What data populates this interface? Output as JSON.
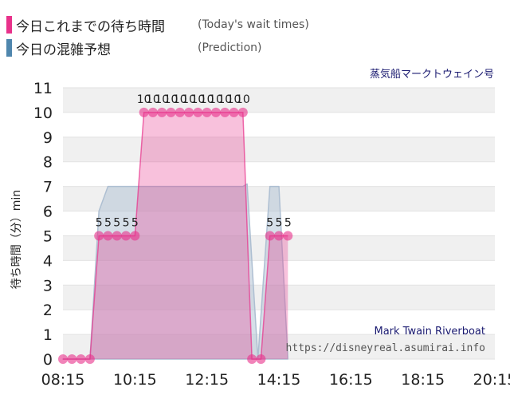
{
  "legend": {
    "today_label": "今日これまでの待ち時間",
    "today_sub": "(Today's wait times)",
    "today_color": "#e8318a",
    "prediction_label": "今日の混雑予想",
    "prediction_sub": "(Prediction)",
    "prediction_color": "#4f86ad"
  },
  "attraction_name": "蒸気船マークトウェイン号",
  "watermark": {
    "line1": "Mark Twain Riverboat",
    "line2": "https://disneyreal.asumirai.info"
  },
  "chart_data": {
    "type": "area",
    "ylabel": "待ち時間（分）min",
    "xlabel": "",
    "ylim": [
      0,
      11
    ],
    "yticks": [
      0,
      1,
      2,
      3,
      4,
      5,
      6,
      7,
      8,
      9,
      10,
      11
    ],
    "xticks": [
      "08:15",
      "10:15",
      "12:15",
      "14:15",
      "16:15",
      "18:15",
      "20:15"
    ],
    "grid": true,
    "series": [
      {
        "kind": "actual",
        "color": "#e8318a",
        "points": [
          [
            "08:15",
            0
          ],
          [
            "08:30",
            0
          ],
          [
            "08:45",
            0
          ],
          [
            "09:00",
            0
          ],
          [
            "09:15",
            5
          ],
          [
            "09:30",
            5
          ],
          [
            "09:45",
            5
          ],
          [
            "10:00",
            5
          ],
          [
            "10:15",
            5
          ],
          [
            "10:30",
            10
          ],
          [
            "10:45",
            10
          ],
          [
            "11:00",
            10
          ],
          [
            "11:15",
            10
          ],
          [
            "11:30",
            10
          ],
          [
            "11:45",
            10
          ],
          [
            "12:00",
            10
          ],
          [
            "12:15",
            10
          ],
          [
            "12:30",
            10
          ],
          [
            "12:45",
            10
          ],
          [
            "13:00",
            10
          ],
          [
            "13:15",
            10
          ],
          [
            "13:30",
            0
          ],
          [
            "13:45",
            0
          ],
          [
            "14:00",
            5
          ],
          [
            "14:15",
            5
          ],
          [
            "14:30",
            5
          ]
        ]
      },
      {
        "kind": "prediction",
        "color": "#aebfd2",
        "points": [
          [
            "08:15",
            0
          ],
          [
            "09:00",
            0
          ],
          [
            "09:15",
            6
          ],
          [
            "09:30",
            7
          ],
          [
            "13:15",
            7
          ],
          [
            "13:22",
            7.1
          ],
          [
            "13:40",
            0
          ],
          [
            "14:00",
            7
          ],
          [
            "14:15",
            7
          ],
          [
            "14:30",
            0
          ]
        ]
      }
    ]
  }
}
